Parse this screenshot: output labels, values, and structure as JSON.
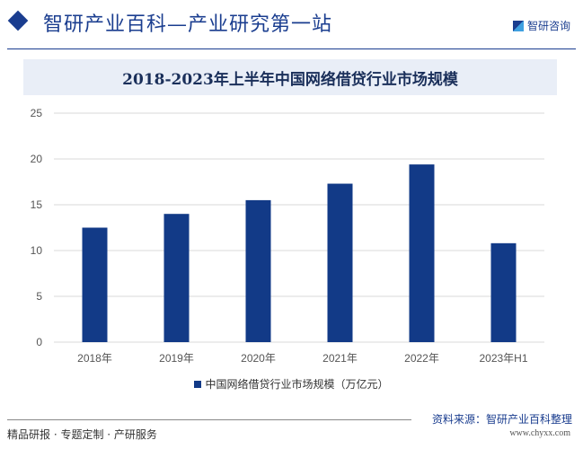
{
  "header": {
    "title": "智研产业百科—产业研究第一站",
    "logo_text": "智研咨询"
  },
  "footer": {
    "left": "精品研报 · 专题定制 · 产研服务",
    "source": "资料来源：智研产业百科整理",
    "url": "www.chyxx.com"
  },
  "colors": {
    "bar": "#123a87",
    "brand": "#1a3d8f"
  },
  "chart_data": {
    "type": "bar",
    "title": "2018-2023年上半年中国网络借贷行业市场规模",
    "categories": [
      "2018年",
      "2019年",
      "2020年",
      "2021年",
      "2022年",
      "2023年H1"
    ],
    "series": [
      {
        "name": "中国网络借贷行业市场规模（万亿元）",
        "values": [
          12.5,
          14.0,
          15.5,
          17.3,
          19.4,
          10.8
        ]
      }
    ],
    "yticks": [
      0,
      5,
      10,
      15,
      20,
      25
    ],
    "ylim": [
      0,
      25
    ],
    "grid": true,
    "legend": "bottom"
  }
}
